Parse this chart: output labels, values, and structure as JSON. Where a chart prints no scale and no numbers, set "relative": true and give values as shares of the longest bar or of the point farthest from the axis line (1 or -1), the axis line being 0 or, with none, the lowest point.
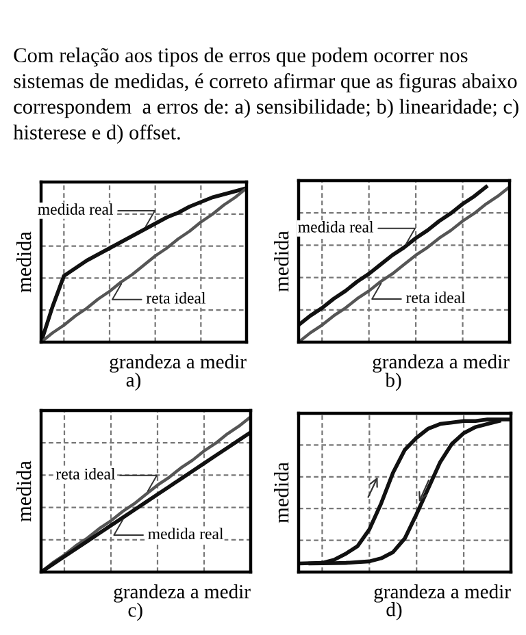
{
  "chart_data": [
    {
      "type": "line",
      "title": "Com relação aos tipos de erros que podem ocorrer nos sistemas de medidas, é correto afirmar que as figuras abaixo correspondem  a erros de: a) sensibilidade; b) linearidade; c) histerese e d) offset.",
      "relative": true,
      "xlabel": "grandeza a medir",
      "ylabel": "medida",
      "grid": true,
      "line_style": "solid",
      "marker": "none",
      "categories": [
        null,
        null,
        null,
        null,
        null,
        null,
        null,
        null,
        null,
        null,
        null,
        null,
        null,
        null,
        null,
        null,
        null,
        null,
        null
      ],
      "series": [
        {
          "color": "#111111",
          "values": [
            0,
            0.23,
            0.43,
            0.48,
            0.53,
            0.57,
            0.61,
            0.65,
            0.69,
            0.73,
            0.77,
            0.81,
            0.84,
            0.88,
            0.91,
            0.94,
            0.96,
            0.98,
            1
          ]
        },
        {
          "color": "#555555",
          "values": [
            0,
            0.06,
            0.11,
            0.17,
            0.22,
            0.28,
            0.33,
            0.39,
            0.44,
            0.5,
            0.56,
            0.61,
            0.67,
            0.72,
            0.78,
            0.83,
            0.89,
            0.94,
            1
          ]
        }
      ],
      "annotations": [
        "medida real",
        "reta ideal",
        "a)"
      ]
    },
    {
      "type": "line",
      "relative": true,
      "xlabel": "grandeza a medir",
      "ylabel": "medida",
      "grid": true,
      "line_style": "solid",
      "marker": "none",
      "categories": [
        null,
        null,
        null,
        null,
        null,
        null,
        null,
        null,
        null,
        null,
        null,
        null,
        null,
        null,
        null,
        null,
        null,
        null,
        null
      ],
      "series": [
        {
          "color": "#111111",
          "values": [
            0.11,
            0.17,
            0.22,
            0.28,
            0.33,
            0.39,
            0.44,
            0.5,
            0.56,
            0.61,
            0.67,
            0.72,
            0.78,
            0.83,
            0.89,
            0.94,
            1,
            null,
            null
          ]
        },
        {
          "color": "#555555",
          "values": [
            0,
            0.06,
            0.11,
            0.17,
            0.22,
            0.28,
            0.33,
            0.39,
            0.44,
            0.5,
            0.56,
            0.61,
            0.67,
            0.72,
            0.78,
            0.83,
            0.89,
            0.94,
            1
          ]
        }
      ],
      "annotations": [
        "medida real",
        "reta ideal",
        "b)"
      ]
    },
    {
      "type": "line",
      "relative": true,
      "xlabel": "grandeza a medir",
      "ylabel": "medida",
      "grid": true,
      "line_style": "solid",
      "marker": "none",
      "categories": [
        null,
        null,
        null,
        null,
        null,
        null,
        null,
        null,
        null,
        null,
        null,
        null,
        null,
        null,
        null,
        null,
        null,
        null,
        null
      ],
      "series": [
        {
          "color": "#555555",
          "values": [
            0,
            0.06,
            0.11,
            0.17,
            0.22,
            0.28,
            0.33,
            0.39,
            0.44,
            0.5,
            0.56,
            0.61,
            0.67,
            0.72,
            0.78,
            0.83,
            0.89,
            0.94,
            1
          ]
        },
        {
          "color": "#111111",
          "values": [
            0,
            0.05,
            0.1,
            0.15,
            0.2,
            0.25,
            0.3,
            0.35,
            0.4,
            0.45,
            0.5,
            0.55,
            0.6,
            0.65,
            0.7,
            0.75,
            0.8,
            0.85,
            0.9
          ]
        }
      ],
      "annotations": [
        "reta ideal",
        "medida real",
        "c)"
      ]
    },
    {
      "type": "line",
      "relative": true,
      "xlabel": "grandeza a medir",
      "ylabel": "medida",
      "grid": true,
      "line_style": "solid",
      "marker": "none",
      "categories": [
        null,
        null,
        null,
        null,
        null,
        null,
        null,
        null,
        null,
        null,
        null,
        null,
        null,
        null,
        null,
        null,
        null,
        null,
        null
      ],
      "series": [
        {
          "color": "#111111",
          "values": [
            0.056,
            0.058,
            0.06,
            0.08,
            0.12,
            0.17,
            0.28,
            0.45,
            0.65,
            0.8,
            0.88,
            0.94,
            0.97,
            0.98,
            0.99,
            0.99,
            1,
            1,
            1
          ]
        },
        {
          "color": "#111111",
          "values": [
            null,
            0.056,
            0.057,
            0.058,
            0.06,
            0.065,
            0.07,
            0.09,
            0.13,
            0.22,
            0.38,
            0.55,
            0.72,
            0.84,
            0.91,
            0.95,
            0.97,
            0.99,
            null
          ]
        }
      ],
      "annotations": [
        "d)"
      ]
    }
  ]
}
